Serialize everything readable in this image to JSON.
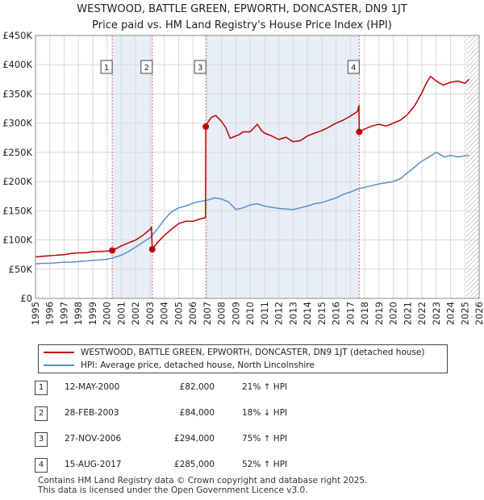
{
  "title": {
    "line1": "WESTWOOD, BATTLE GREEN, EPWORTH, DONCASTER, DN9 1JT",
    "line2": "Price paid vs. HM Land Registry's House Price Index (HPI)"
  },
  "legend": {
    "property": "WESTWOOD, BATTLE GREEN, EPWORTH, DONCASTER, DN9 1JT (detached house)",
    "hpi": "HPI: Average price, detached house, North Lincolnshire"
  },
  "colors": {
    "property": "#c00000",
    "hpi": "#5b8fc7",
    "shade": "#e8eef7",
    "grid": "#d8d8d8",
    "marker_line": "#e06060"
  },
  "transactions": [
    {
      "num": "1",
      "date": "12-MAY-2000",
      "price": "£82,000",
      "hpi": "21% ↑ HPI"
    },
    {
      "num": "2",
      "date": "28-FEB-2003",
      "price": "£84,000",
      "hpi": "18% ↓ HPI"
    },
    {
      "num": "3",
      "date": "27-NOV-2006",
      "price": "£294,000",
      "hpi": "75% ↑ HPI"
    },
    {
      "num": "4",
      "date": "15-AUG-2017",
      "price": "£285,000",
      "hpi": "52% ↑ HPI"
    }
  ],
  "footer": {
    "line1": "Contains HM Land Registry data © Crown copyright and database right 2025.",
    "line2": "This data is licensed under the Open Government Licence v3.0."
  },
  "chart_data": {
    "type": "line",
    "title": "WESTWOOD, BATTLE GREEN, EPWORTH, DONCASTER, DN9 1JT",
    "subtitle": "Price paid vs. HM Land Registry's House Price Index (HPI)",
    "xlim": [
      1995,
      2026
    ],
    "ylim": [
      0,
      450000
    ],
    "xticks": [
      1995,
      1996,
      1997,
      1998,
      1999,
      2000,
      2001,
      2002,
      2003,
      2004,
      2005,
      2006,
      2007,
      2008,
      2009,
      2010,
      2011,
      2012,
      2013,
      2014,
      2015,
      2016,
      2017,
      2018,
      2019,
      2020,
      2021,
      2022,
      2023,
      2024,
      2025,
      2026
    ],
    "yticks": [
      {
        "value": 0,
        "label": "£0"
      },
      {
        "value": 50000,
        "label": "£50K"
      },
      {
        "value": 100000,
        "label": "£100K"
      },
      {
        "value": 150000,
        "label": "£150K"
      },
      {
        "value": 200000,
        "label": "£200K"
      },
      {
        "value": 250000,
        "label": "£250K"
      },
      {
        "value": 300000,
        "label": "£300K"
      },
      {
        "value": 350000,
        "label": "£350K"
      },
      {
        "value": 400000,
        "label": "£400K"
      },
      {
        "value": 450000,
        "label": "£450K"
      }
    ],
    "shaded_ranges": [
      [
        2000.36,
        2003.16
      ],
      [
        2006.9,
        2017.62
      ]
    ],
    "hatched_from": 2025.1,
    "sales": [
      {
        "label": "1",
        "x": 2000.36,
        "y": 82000
      },
      {
        "label": "2",
        "x": 2003.16,
        "y": 84000
      },
      {
        "label": "3",
        "x": 2006.9,
        "y": 294000
      },
      {
        "label": "4",
        "x": 2017.62,
        "y": 285000
      }
    ],
    "series": [
      {
        "name": "WESTWOOD, BATTLE GREEN, EPWORTH, DONCASTER, DN9 1JT (detached house)",
        "x": [
          1995,
          1995.5,
          1996,
          1996.5,
          1997,
          1997.5,
          1998,
          1998.5,
          1999,
          1999.5,
          2000,
          2000.36,
          2000.36,
          2000.7,
          2001,
          2001.5,
          2002,
          2002.5,
          2003,
          2003.1,
          2003.16,
          2003.16,
          2003.5,
          2004,
          2004.5,
          2005,
          2005.5,
          2006,
          2006.5,
          2006.88,
          2006.9,
          2006.9,
          2007,
          2007.3,
          2007.6,
          2008,
          2008.3,
          2008.6,
          2009,
          2009.2,
          2009.5,
          2010,
          2010.5,
          2010.8,
          2011,
          2011.5,
          2012,
          2012.5,
          2013,
          2013.5,
          2014,
          2014.5,
          2015,
          2015.5,
          2016,
          2016.5,
          2017,
          2017.5,
          2017.6,
          2017.62,
          2017.62,
          2018,
          2018.5,
          2019,
          2019.5,
          2020,
          2020.5,
          2021,
          2021.5,
          2022,
          2022.3,
          2022.6,
          2023,
          2023.5,
          2024,
          2024.5,
          2025,
          2025.3
        ],
        "y": [
          71000,
          72000,
          73000,
          74000,
          75000,
          77000,
          78000,
          78000,
          80000,
          80000,
          81000,
          82000,
          82000,
          86000,
          90000,
          95000,
          100000,
          108000,
          118000,
          122000,
          84000,
          84000,
          95000,
          108000,
          118000,
          128000,
          132000,
          132000,
          136000,
          138000,
          294000,
          294000,
          300000,
          310000,
          313000,
          303000,
          292000,
          274000,
          278000,
          280000,
          285000,
          285000,
          298000,
          287000,
          283000,
          278000,
          272000,
          276000,
          268000,
          270000,
          278000,
          283000,
          287000,
          293000,
          300000,
          305000,
          312000,
          320000,
          330000,
          285000,
          285000,
          290000,
          295000,
          298000,
          295000,
          300000,
          305000,
          315000,
          330000,
          352000,
          368000,
          380000,
          372000,
          365000,
          370000,
          372000,
          368000,
          375000
        ],
        "color": "#c00000"
      },
      {
        "name": "HPI: Average price, detached house, North Lincolnshire",
        "x": [
          1995,
          1995.5,
          1996,
          1996.5,
          1997,
          1997.5,
          1998,
          1998.5,
          1999,
          1999.5,
          2000,
          2000.5,
          2001,
          2001.5,
          2002,
          2002.5,
          2003,
          2003.5,
          2004,
          2004.5,
          2005,
          2005.5,
          2006,
          2006.5,
          2007,
          2007.5,
          2008,
          2008.5,
          2009,
          2009.5,
          2010,
          2010.5,
          2011,
          2011.5,
          2012,
          2012.5,
          2013,
          2013.5,
          2014,
          2014.5,
          2015,
          2015.5,
          2016,
          2016.5,
          2017,
          2017.5,
          2018,
          2018.5,
          2019,
          2019.5,
          2020,
          2020.5,
          2021,
          2021.5,
          2022,
          2022.5,
          2023,
          2023.3,
          2023.6,
          2024,
          2024.5,
          2025,
          2025.3
        ],
        "y": [
          59000,
          60000,
          60000,
          61000,
          62000,
          62000,
          63000,
          64000,
          65000,
          66000,
          67000,
          70000,
          74000,
          80000,
          88000,
          96000,
          104000,
          118000,
          135000,
          148000,
          155000,
          158000,
          163000,
          166000,
          168000,
          172000,
          170000,
          165000,
          152000,
          155000,
          160000,
          162000,
          158000,
          156000,
          154000,
          153000,
          152000,
          155000,
          158000,
          162000,
          164000,
          168000,
          172000,
          178000,
          182000,
          187000,
          190000,
          193000,
          196000,
          198000,
          200000,
          205000,
          215000,
          225000,
          235000,
          242000,
          250000,
          246000,
          242000,
          245000,
          242000,
          244000,
          245000
        ],
        "color": "#5b8fc7"
      }
    ]
  }
}
